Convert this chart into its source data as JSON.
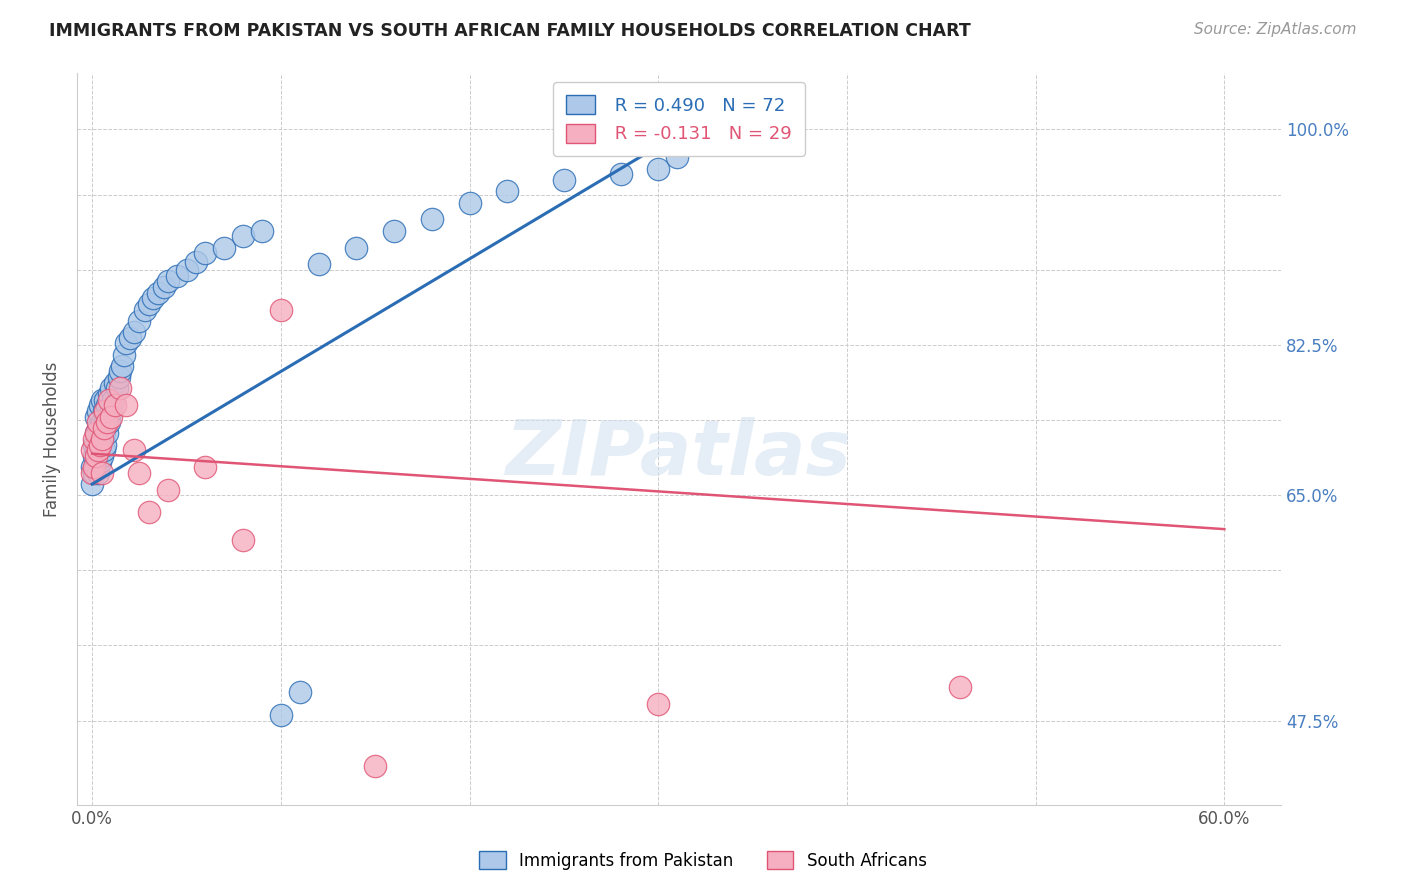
{
  "title": "IMMIGRANTS FROM PAKISTAN VS SOUTH AFRICAN FAMILY HOUSEHOLDS CORRELATION CHART",
  "source": "Source: ZipAtlas.com",
  "ylabel_label": "Family Households",
  "x_tick_pos": [
    0.0,
    0.1,
    0.2,
    0.3,
    0.4,
    0.5,
    0.6
  ],
  "x_tick_labels": [
    "0.0%",
    "",
    "",
    "",
    "",
    "",
    "60.0%"
  ],
  "y_tick_pos": [
    0.475,
    0.5417,
    0.6083,
    0.675,
    0.7417,
    0.8083,
    0.875,
    0.9417,
    1.0
  ],
  "y_tick_labels_right": [
    "47.5%",
    "",
    "",
    "65.0%",
    "",
    "82.5%",
    "",
    "",
    "100.0%"
  ],
  "xlim": [
    -0.008,
    0.63
  ],
  "ylim": [
    0.4,
    1.05
  ],
  "r_pakistan": 0.49,
  "n_pakistan": 72,
  "r_south_african": -0.131,
  "n_south_african": 29,
  "color_pakistan": "#adc8e8",
  "color_south_african": "#f5afc0",
  "line_color_pakistan": "#2b6db5",
  "line_color_south_african": "#e05575",
  "right_tick_color": "#4a7fc1",
  "legend_label_pakistan": "Immigrants from Pakistan",
  "legend_label_south_african": "South Africans",
  "watermark": "ZIPatlas",
  "pak_line_x0": 0.0,
  "pak_line_y0": 0.685,
  "pak_line_x1": 0.32,
  "pak_line_y1": 1.005,
  "sa_line_x0": 0.0,
  "sa_line_y0": 0.712,
  "sa_line_x1": 0.6,
  "sa_line_y1": 0.645,
  "pakistan_x": [
    0.0,
    0.0,
    0.001,
    0.001,
    0.001,
    0.002,
    0.002,
    0.002,
    0.002,
    0.003,
    0.003,
    0.003,
    0.003,
    0.003,
    0.004,
    0.004,
    0.004,
    0.004,
    0.005,
    0.005,
    0.005,
    0.005,
    0.006,
    0.006,
    0.006,
    0.007,
    0.007,
    0.007,
    0.008,
    0.008,
    0.009,
    0.009,
    0.01,
    0.01,
    0.011,
    0.012,
    0.013,
    0.014,
    0.015,
    0.016,
    0.017,
    0.018,
    0.02,
    0.022,
    0.025,
    0.028,
    0.03,
    0.032,
    0.035,
    0.038,
    0.04,
    0.045,
    0.05,
    0.055,
    0.06,
    0.07,
    0.08,
    0.09,
    0.1,
    0.11,
    0.12,
    0.14,
    0.16,
    0.18,
    0.2,
    0.22,
    0.25,
    0.28,
    0.3,
    0.31,
    0.315,
    0.32
  ],
  "pakistan_y": [
    0.685,
    0.7,
    0.695,
    0.71,
    0.72,
    0.7,
    0.715,
    0.73,
    0.745,
    0.695,
    0.71,
    0.72,
    0.735,
    0.75,
    0.705,
    0.72,
    0.735,
    0.755,
    0.71,
    0.725,
    0.74,
    0.76,
    0.715,
    0.73,
    0.75,
    0.72,
    0.74,
    0.76,
    0.73,
    0.755,
    0.74,
    0.765,
    0.75,
    0.77,
    0.76,
    0.775,
    0.77,
    0.78,
    0.785,
    0.79,
    0.8,
    0.81,
    0.815,
    0.82,
    0.83,
    0.84,
    0.845,
    0.85,
    0.855,
    0.86,
    0.865,
    0.87,
    0.875,
    0.882,
    0.89,
    0.895,
    0.905,
    0.91,
    0.48,
    0.5,
    0.88,
    0.895,
    0.91,
    0.92,
    0.935,
    0.945,
    0.955,
    0.96,
    0.965,
    0.975,
    1.005,
    0.99
  ],
  "south_african_x": [
    0.0,
    0.0,
    0.001,
    0.001,
    0.002,
    0.002,
    0.003,
    0.003,
    0.004,
    0.005,
    0.005,
    0.006,
    0.007,
    0.008,
    0.009,
    0.01,
    0.012,
    0.015,
    0.018,
    0.022,
    0.025,
    0.03,
    0.04,
    0.06,
    0.08,
    0.1,
    0.15,
    0.3,
    0.46
  ],
  "south_african_y": [
    0.695,
    0.715,
    0.7,
    0.725,
    0.71,
    0.73,
    0.715,
    0.74,
    0.72,
    0.695,
    0.725,
    0.735,
    0.75,
    0.74,
    0.76,
    0.745,
    0.755,
    0.77,
    0.755,
    0.715,
    0.695,
    0.66,
    0.68,
    0.7,
    0.635,
    0.84,
    0.435,
    0.49,
    0.505
  ]
}
